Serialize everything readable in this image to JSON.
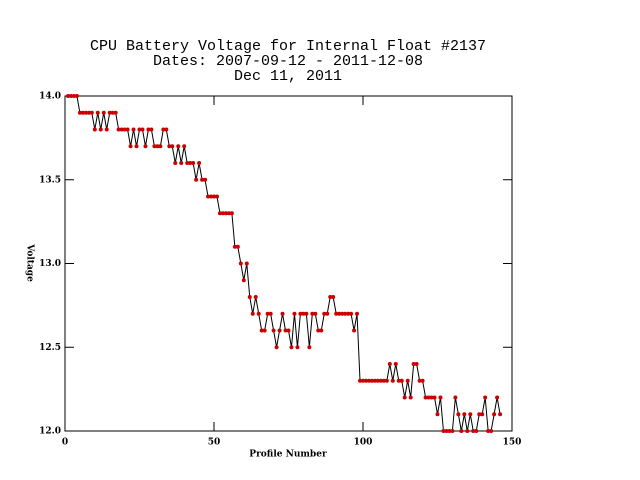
{
  "chart_data": {
    "type": "line",
    "title": [
      "CPU Battery Voltage for Internal Float #2137",
      "Dates:  2007-09-12 -  2011-12-08",
      "Dec 11, 2011"
    ],
    "xlabel": "Profile Number",
    "ylabel": "Voltage",
    "x": [
      1,
      2,
      3,
      4,
      5,
      6,
      7,
      8,
      9,
      10,
      11,
      12,
      13,
      14,
      15,
      16,
      17,
      18,
      19,
      20,
      21,
      22,
      23,
      24,
      25,
      26,
      27,
      28,
      29,
      30,
      31,
      32,
      33,
      34,
      35,
      36,
      37,
      38,
      39,
      40,
      41,
      42,
      43,
      44,
      45,
      46,
      47,
      48,
      49,
      50,
      51,
      52,
      53,
      54,
      55,
      56,
      57,
      58,
      59,
      60,
      61,
      62,
      63,
      64,
      65,
      66,
      67,
      68,
      69,
      70,
      71,
      72,
      73,
      74,
      75,
      76,
      77,
      78,
      79,
      80,
      81,
      82,
      83,
      84,
      85,
      86,
      87,
      88,
      89,
      90,
      91,
      92,
      93,
      94,
      95,
      96,
      97,
      98,
      99,
      100,
      101,
      102,
      103,
      104,
      105,
      106,
      107,
      108,
      109,
      110,
      111,
      112,
      113,
      114,
      115,
      116,
      117,
      118,
      119,
      120,
      121,
      122,
      123,
      124,
      125,
      126,
      127,
      128,
      129,
      130,
      131,
      132,
      133,
      134,
      135,
      136,
      137,
      138,
      139,
      140,
      141,
      142,
      143,
      144,
      145,
      146
    ],
    "series": [
      {
        "name": "Voltage",
        "color": "#000000",
        "marker_color": "#cc0000",
        "values": [
          14.0,
          14.0,
          14.0,
          14.0,
          13.9,
          13.9,
          13.9,
          13.9,
          13.9,
          13.8,
          13.9,
          13.8,
          13.9,
          13.8,
          13.9,
          13.9,
          13.9,
          13.8,
          13.8,
          13.8,
          13.8,
          13.7,
          13.8,
          13.7,
          13.8,
          13.8,
          13.7,
          13.8,
          13.8,
          13.7,
          13.7,
          13.7,
          13.8,
          13.8,
          13.7,
          13.7,
          13.6,
          13.7,
          13.6,
          13.7,
          13.6,
          13.6,
          13.6,
          13.5,
          13.6,
          13.5,
          13.5,
          13.4,
          13.4,
          13.4,
          13.4,
          13.3,
          13.3,
          13.3,
          13.3,
          13.3,
          13.1,
          13.1,
          13.0,
          12.9,
          13.0,
          12.8,
          12.7,
          12.8,
          12.7,
          12.6,
          12.6,
          12.7,
          12.7,
          12.6,
          12.5,
          12.6,
          12.7,
          12.6,
          12.6,
          12.5,
          12.7,
          12.5,
          12.7,
          12.7,
          12.7,
          12.5,
          12.7,
          12.7,
          12.6,
          12.6,
          12.7,
          12.7,
          12.8,
          12.8,
          12.7,
          12.7,
          12.7,
          12.7,
          12.7,
          12.7,
          12.6,
          12.7,
          12.3,
          12.3,
          12.3,
          12.3,
          12.3,
          12.3,
          12.3,
          12.3,
          12.3,
          12.3,
          12.4,
          12.3,
          12.4,
          12.3,
          12.3,
          12.2,
          12.3,
          12.2,
          12.4,
          12.4,
          12.3,
          12.3,
          12.2,
          12.2,
          12.2,
          12.2,
          12.1,
          12.2,
          12.0,
          12.0,
          12.0,
          12.0,
          12.2,
          12.1,
          12.0,
          12.1,
          12.0,
          12.1,
          12.0,
          12.0,
          12.1,
          12.1,
          12.2,
          12.0,
          12.0,
          12.1,
          12.2,
          12.1
        ]
      }
    ],
    "xlim": [
      0,
      150
    ],
    "xticks": [
      0,
      50,
      100,
      150
    ],
    "ylim": [
      12.0,
      14.0
    ],
    "yticks": [
      {
        "value": 12.0,
        "label": "12.0"
      },
      12.5,
      {
        "value": 13.0,
        "label": "13.0"
      },
      13.5,
      {
        "value": 14.0,
        "label": "14.0"
      }
    ]
  }
}
